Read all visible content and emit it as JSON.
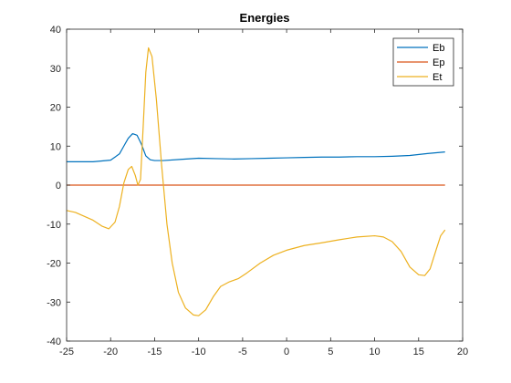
{
  "chart_data": {
    "type": "line",
    "title": "Energies",
    "xlabel": "",
    "ylabel": "",
    "xlim": [
      -25,
      20
    ],
    "ylim": [
      -40,
      40
    ],
    "x_ticks": [
      "-25",
      "-20",
      "-15",
      "-10",
      "-5",
      "0",
      "5",
      "10",
      "15",
      "20"
    ],
    "y_ticks": [
      "-40",
      "-30",
      "-20",
      "-10",
      "0",
      "10",
      "20",
      "30",
      "40"
    ],
    "grid": false,
    "legend_position": "top-right",
    "series": [
      {
        "name": "Eb",
        "color": "#0072BD",
        "points": [
          [
            -25,
            6.0
          ],
          [
            -22,
            6.0
          ],
          [
            -20,
            6.4
          ],
          [
            -19,
            8.0
          ],
          [
            -18.5,
            10.0
          ],
          [
            -18,
            12.0
          ],
          [
            -17.5,
            13.2
          ],
          [
            -17,
            12.8
          ],
          [
            -16.5,
            10.5
          ],
          [
            -16,
            7.5
          ],
          [
            -15.5,
            6.5
          ],
          [
            -15,
            6.3
          ],
          [
            -14,
            6.3
          ],
          [
            -12,
            6.6
          ],
          [
            -10,
            6.9
          ],
          [
            -8,
            6.8
          ],
          [
            -6,
            6.7
          ],
          [
            -4,
            6.8
          ],
          [
            -2,
            6.9
          ],
          [
            0,
            7.0
          ],
          [
            2,
            7.1
          ],
          [
            4,
            7.2
          ],
          [
            6,
            7.2
          ],
          [
            8,
            7.3
          ],
          [
            10,
            7.3
          ],
          [
            12,
            7.4
          ],
          [
            14,
            7.6
          ],
          [
            16,
            8.1
          ],
          [
            18,
            8.5
          ]
        ]
      },
      {
        "name": "Ep",
        "color": "#D95319",
        "points": [
          [
            -25,
            0
          ],
          [
            18,
            0
          ]
        ]
      },
      {
        "name": "Et",
        "color": "#EDB120",
        "points": [
          [
            -25,
            -6.5
          ],
          [
            -24,
            -7.0
          ],
          [
            -23,
            -8.0
          ],
          [
            -22,
            -9.0
          ],
          [
            -21,
            -10.5
          ],
          [
            -20.2,
            -11.2
          ],
          [
            -19.5,
            -9.5
          ],
          [
            -19,
            -5.5
          ],
          [
            -18.5,
            0.5
          ],
          [
            -18,
            4.0
          ],
          [
            -17.6,
            4.8
          ],
          [
            -17.2,
            2.5
          ],
          [
            -16.9,
            0.0
          ],
          [
            -16.6,
            1.5
          ],
          [
            -16.3,
            15.0
          ],
          [
            -16.0,
            29.0
          ],
          [
            -15.7,
            35.2
          ],
          [
            -15.3,
            33.0
          ],
          [
            -14.8,
            22.0
          ],
          [
            -14.2,
            5.0
          ],
          [
            -13.6,
            -10.0
          ],
          [
            -13,
            -20.0
          ],
          [
            -12.3,
            -27.5
          ],
          [
            -11.5,
            -31.5
          ],
          [
            -10.6,
            -33.3
          ],
          [
            -10,
            -33.5
          ],
          [
            -9.2,
            -32.0
          ],
          [
            -8.3,
            -28.5
          ],
          [
            -7.5,
            -26.0
          ],
          [
            -6.5,
            -24.8
          ],
          [
            -5.5,
            -24.0
          ],
          [
            -4.5,
            -22.5
          ],
          [
            -3,
            -20.0
          ],
          [
            -1.5,
            -18.0
          ],
          [
            0,
            -16.7
          ],
          [
            2,
            -15.5
          ],
          [
            4,
            -14.8
          ],
          [
            6,
            -14.0
          ],
          [
            8,
            -13.3
          ],
          [
            10,
            -13.0
          ],
          [
            11,
            -13.3
          ],
          [
            12,
            -14.5
          ],
          [
            13,
            -17.0
          ],
          [
            14,
            -21.0
          ],
          [
            15,
            -23.0
          ],
          [
            15.7,
            -23.2
          ],
          [
            16.3,
            -21.5
          ],
          [
            17,
            -16.5
          ],
          [
            17.5,
            -13.0
          ],
          [
            18,
            -11.5
          ]
        ]
      }
    ]
  }
}
